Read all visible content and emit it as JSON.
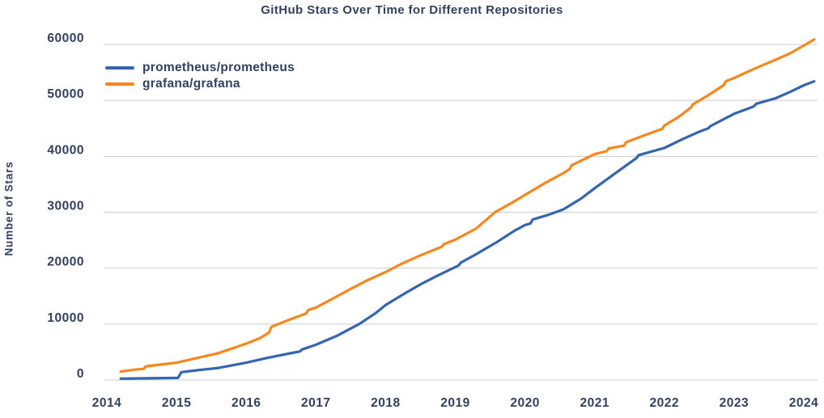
{
  "chart": {
    "title": "GitHub Stars Over Time for Different Repositories",
    "y_axis_label": "Number of Stars",
    "legend": [
      {
        "label": "prometheus/prometheus",
        "color": "#3565af"
      },
      {
        "label": "grafana/grafana",
        "color": "#f6871f"
      }
    ]
  },
  "colors": {
    "text": "#33415e",
    "gridline": "#cbcbcb",
    "background": "#ffffff",
    "prometheus_line": "#3565af",
    "grafana_line": "#f6871f"
  },
  "chart_data": {
    "type": "line",
    "title": "GitHub Stars Over Time for Different Repositories",
    "xlabel": "",
    "ylabel": "Number of Stars",
    "x_ticks": [
      2014,
      2015,
      2016,
      2017,
      2018,
      2019,
      2020,
      2021,
      2022,
      2023,
      2024
    ],
    "y_ticks": [
      0,
      10000,
      20000,
      30000,
      40000,
      50000,
      60000
    ],
    "xlim": [
      2013.95,
      2024.2
    ],
    "ylim": [
      0,
      60000
    ],
    "grid": "horizontal",
    "legend_position": "top-left",
    "series": [
      {
        "name": "prometheus/prometheus",
        "color": "#3565af",
        "points": [
          [
            2014.2,
            250
          ],
          [
            2014.6,
            300
          ],
          [
            2015.02,
            380
          ],
          [
            2015.07,
            1400
          ],
          [
            2015.3,
            1750
          ],
          [
            2015.6,
            2150
          ],
          [
            2016.0,
            3100
          ],
          [
            2016.3,
            3950
          ],
          [
            2016.6,
            4700
          ],
          [
            2016.77,
            5100
          ],
          [
            2016.8,
            5450
          ],
          [
            2017.0,
            6300
          ],
          [
            2017.3,
            7900
          ],
          [
            2017.62,
            10000
          ],
          [
            2017.85,
            11900
          ],
          [
            2018.0,
            13400
          ],
          [
            2018.25,
            15300
          ],
          [
            2018.5,
            17100
          ],
          [
            2018.75,
            18700
          ],
          [
            2019.0,
            20200
          ],
          [
            2019.05,
            20500
          ],
          [
            2019.08,
            21000
          ],
          [
            2019.3,
            22500
          ],
          [
            2019.6,
            24700
          ],
          [
            2019.85,
            26700
          ],
          [
            2020.0,
            27700
          ],
          [
            2020.08,
            28000
          ],
          [
            2020.11,
            28700
          ],
          [
            2020.35,
            29600
          ],
          [
            2020.55,
            30500
          ],
          [
            2020.8,
            32400
          ],
          [
            2021.0,
            34300
          ],
          [
            2021.3,
            37000
          ],
          [
            2021.6,
            39700
          ],
          [
            2021.63,
            40200
          ],
          [
            2021.8,
            40800
          ],
          [
            2022.0,
            41500
          ],
          [
            2022.25,
            43000
          ],
          [
            2022.5,
            44400
          ],
          [
            2022.63,
            45000
          ],
          [
            2022.66,
            45400
          ],
          [
            2023.0,
            47600
          ],
          [
            2023.28,
            48900
          ],
          [
            2023.32,
            49400
          ],
          [
            2023.6,
            50400
          ],
          [
            2023.8,
            51500
          ],
          [
            2024.0,
            52700
          ],
          [
            2024.15,
            53400
          ]
        ]
      },
      {
        "name": "grafana/grafana",
        "color": "#f6871f",
        "points": [
          [
            2014.2,
            1500
          ],
          [
            2014.4,
            1850
          ],
          [
            2014.53,
            2000
          ],
          [
            2014.56,
            2450
          ],
          [
            2014.8,
            2800
          ],
          [
            2015.0,
            3100
          ],
          [
            2015.3,
            3950
          ],
          [
            2015.6,
            4800
          ],
          [
            2016.0,
            6500
          ],
          [
            2016.2,
            7500
          ],
          [
            2016.33,
            8500
          ],
          [
            2016.36,
            9500
          ],
          [
            2016.6,
            10700
          ],
          [
            2016.86,
            11900
          ],
          [
            2016.89,
            12500
          ],
          [
            2017.0,
            12950
          ],
          [
            2017.25,
            14600
          ],
          [
            2017.5,
            16300
          ],
          [
            2017.75,
            17900
          ],
          [
            2018.0,
            19300
          ],
          [
            2018.25,
            20900
          ],
          [
            2018.5,
            22300
          ],
          [
            2018.8,
            23800
          ],
          [
            2018.84,
            24300
          ],
          [
            2019.0,
            25100
          ],
          [
            2019.3,
            27100
          ],
          [
            2019.57,
            30000
          ],
          [
            2019.8,
            31600
          ],
          [
            2020.0,
            33100
          ],
          [
            2020.3,
            35300
          ],
          [
            2020.55,
            37000
          ],
          [
            2020.64,
            37700
          ],
          [
            2020.67,
            38400
          ],
          [
            2021.0,
            40400
          ],
          [
            2021.17,
            40900
          ],
          [
            2021.2,
            41400
          ],
          [
            2021.42,
            41900
          ],
          [
            2021.45,
            42500
          ],
          [
            2021.7,
            43700
          ],
          [
            2021.97,
            44900
          ],
          [
            2022.0,
            45500
          ],
          [
            2022.2,
            47000
          ],
          [
            2022.38,
            48700
          ],
          [
            2022.41,
            49300
          ],
          [
            2022.6,
            50700
          ],
          [
            2022.85,
            52700
          ],
          [
            2022.88,
            53400
          ],
          [
            2023.0,
            54000
          ],
          [
            2023.3,
            55700
          ],
          [
            2023.6,
            57300
          ],
          [
            2023.8,
            58400
          ],
          [
            2024.0,
            59800
          ],
          [
            2024.15,
            60900
          ]
        ]
      }
    ]
  }
}
